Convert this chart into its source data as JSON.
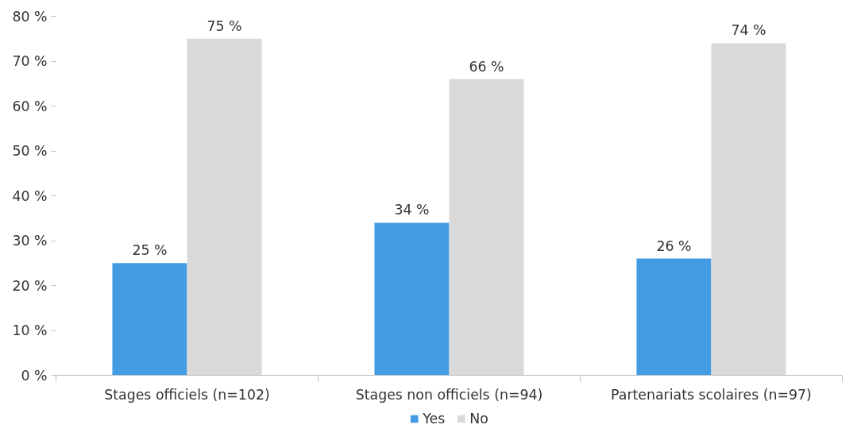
{
  "chart_data": {
    "type": "bar",
    "categories": [
      "Stages officiels (n=102)",
      "Stages non officiels (n=94)",
      "Partenariats scolaires (n=97)"
    ],
    "series": [
      {
        "name": "Yes",
        "color": "#439be3",
        "values": [
          25,
          34,
          26
        ],
        "value_labels": [
          "25 %",
          "34 %",
          "26 %"
        ]
      },
      {
        "name": "No",
        "color": "#d9d9d9",
        "values": [
          75,
          66,
          74
        ],
        "value_labels": [
          "75 %",
          "66 %",
          "74 %"
        ]
      }
    ],
    "ylim": [
      0,
      80
    ],
    "yticks": [
      {
        "value": 0,
        "label": "0 %"
      },
      {
        "value": 10,
        "label": "10 %"
      },
      {
        "value": 20,
        "label": "20 %"
      },
      {
        "value": 30,
        "label": "30 %"
      },
      {
        "value": 40,
        "label": "40 %"
      },
      {
        "value": 50,
        "label": "50 %"
      },
      {
        "value": 60,
        "label": "60 %"
      },
      {
        "value": 70,
        "label": "70 %"
      },
      {
        "value": 80,
        "label": "80 %"
      }
    ],
    "grid": false,
    "legend": "bottom"
  }
}
